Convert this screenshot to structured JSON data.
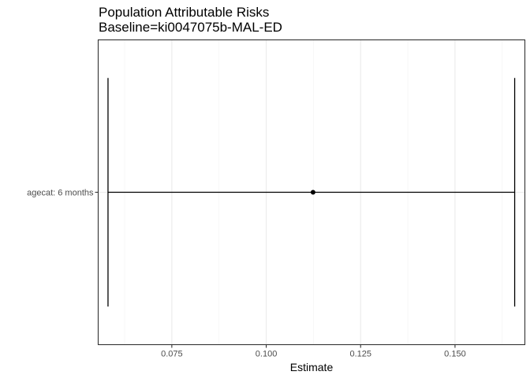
{
  "chart_data": {
    "type": "errorbar",
    "title": "Population Attributable Risks",
    "subtitle": "Baseline=ki0047075b-MAL-ED",
    "xlabel": "Estimate",
    "ylabel": "",
    "xlim": [
      0.0555,
      0.1685
    ],
    "xticks": [
      0.075,
      0.1,
      0.125,
      0.15
    ],
    "xtick_labels": [
      "0.075",
      "0.100",
      "0.125",
      "0.150"
    ],
    "categories": [
      "agecat: 6 months"
    ],
    "points": [
      {
        "category": "agecat: 6 months",
        "estimate": 0.1124,
        "lower": 0.0581,
        "upper": 0.1658
      }
    ],
    "grid": true,
    "colors": {
      "point": "#000000",
      "line": "#000000",
      "grid": "#ebebeb",
      "border": "#333333"
    }
  }
}
